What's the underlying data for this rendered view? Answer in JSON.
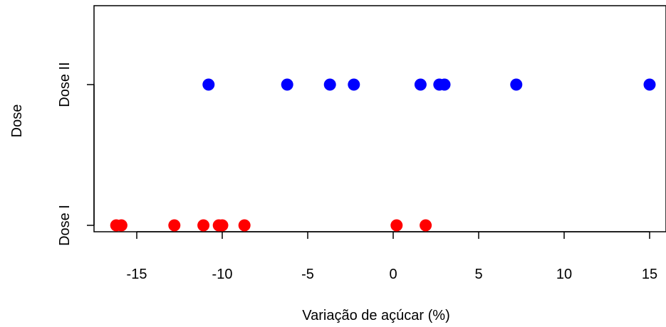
{
  "chart_data": {
    "type": "scatter",
    "title": "",
    "xlabel": "Variação de açúcar (%)",
    "ylabel": "Dose",
    "xlim": [
      -17.5,
      16
    ],
    "x_ticks": [
      -15,
      -10,
      -5,
      0,
      5,
      10,
      15
    ],
    "x_tick_labels": [
      "-15",
      "-10",
      "-5",
      "0",
      "5",
      "10",
      "15"
    ],
    "categories": [
      "Dose I",
      "Dose II"
    ],
    "grid": false,
    "series": [
      {
        "category": "Dose I",
        "color": "#ff0000",
        "x": [
          -16.2,
          -15.9,
          -12.8,
          -11.1,
          -10.2,
          -10.0,
          -8.7,
          0.2,
          1.9
        ]
      },
      {
        "category": "Dose II",
        "color": "#0000ff",
        "x": [
          -10.8,
          -6.2,
          -3.7,
          -2.3,
          1.6,
          2.7,
          3.0,
          7.2,
          15.0
        ]
      }
    ]
  }
}
